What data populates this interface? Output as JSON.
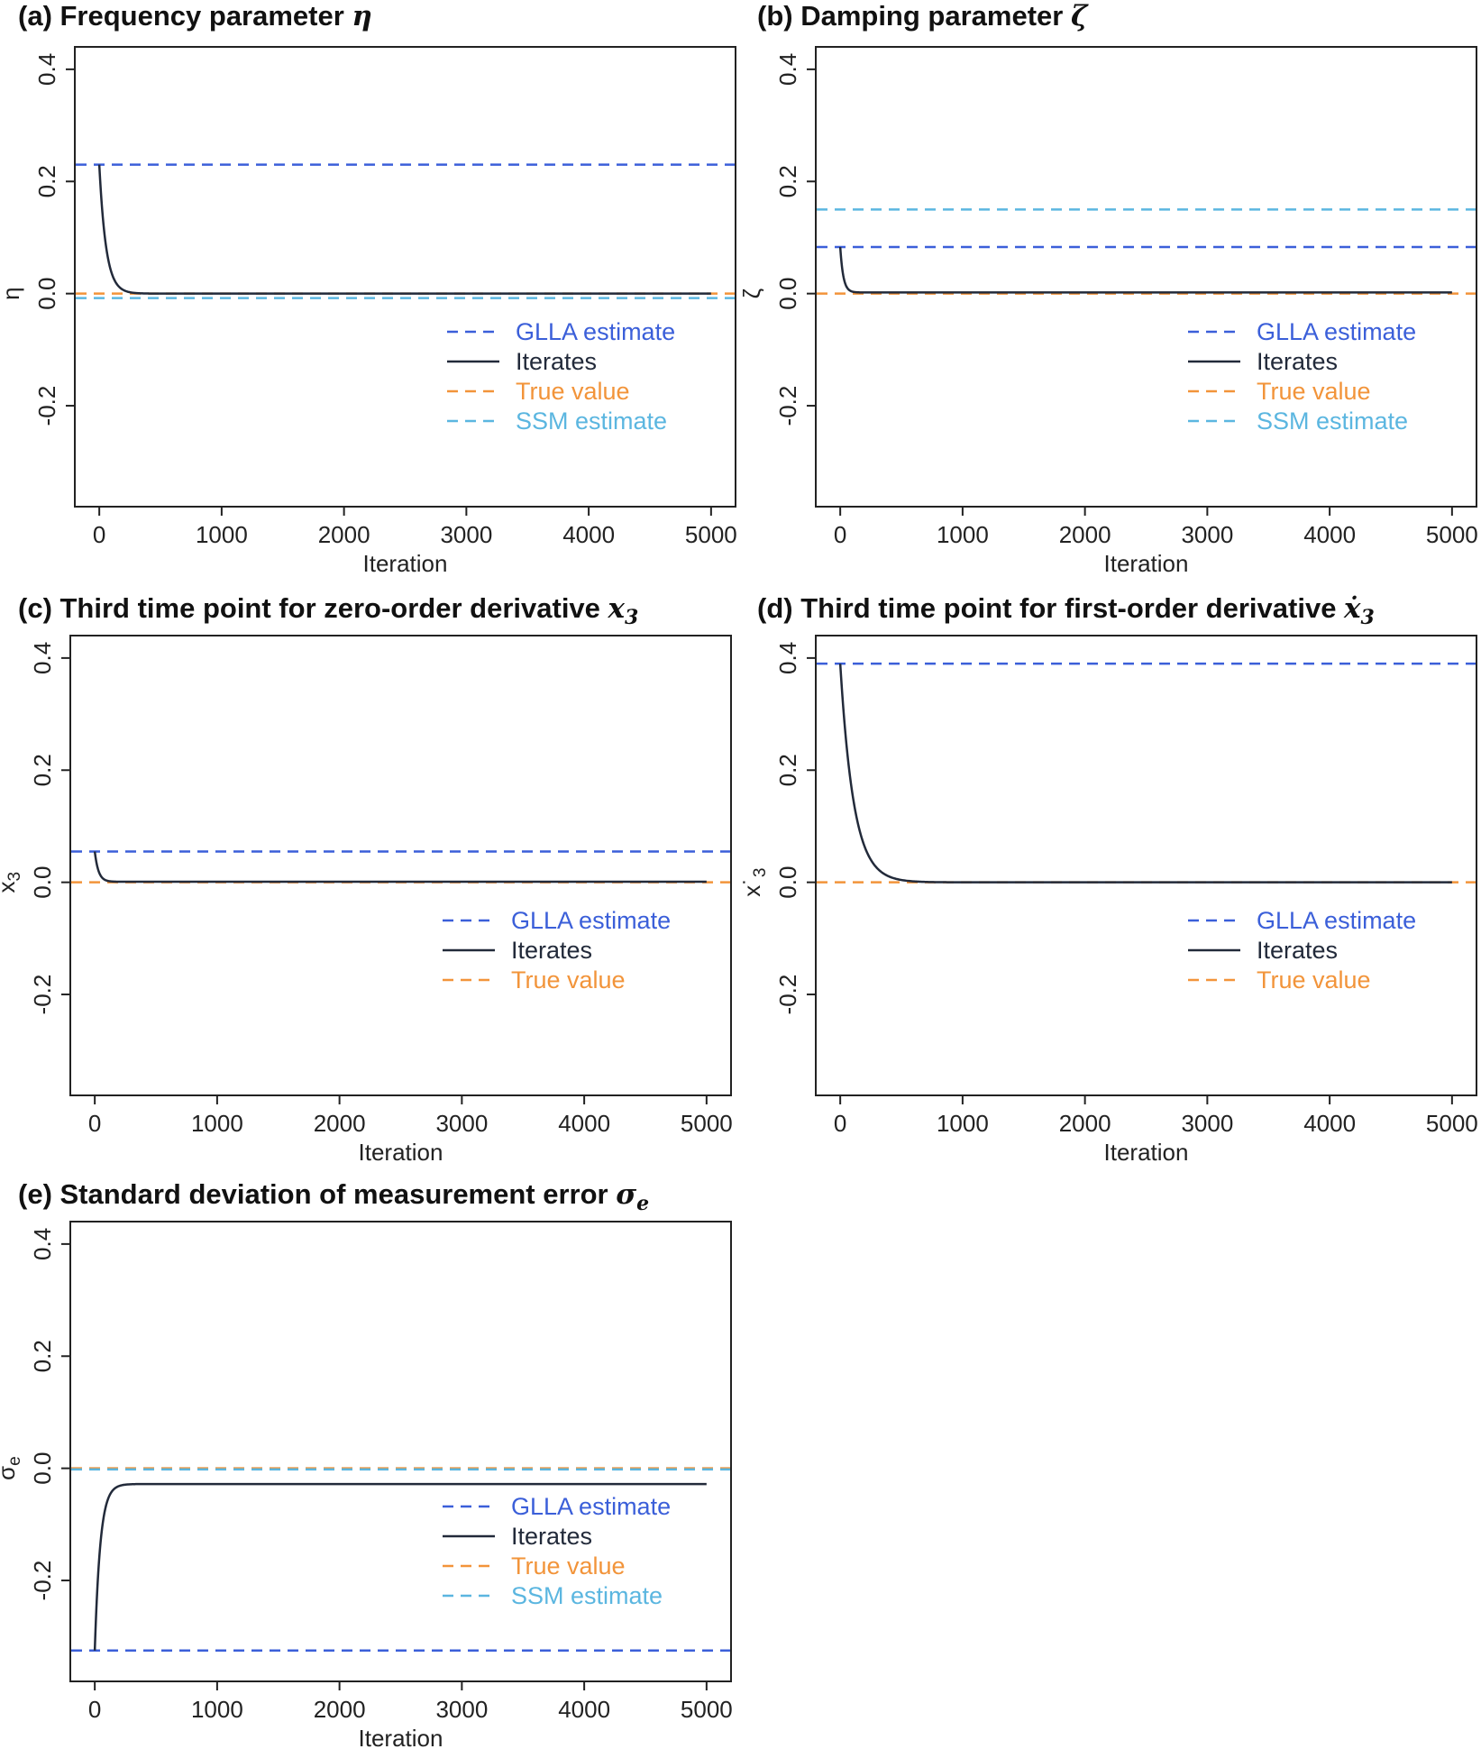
{
  "chart_data": [
    {
      "id": "a",
      "type": "line",
      "title_prefix": "(a) Frequency parameter",
      "title_symbol": "η",
      "title_subscript": "",
      "xlabel": "Iteration",
      "ylabel": "η",
      "ylabel_subscript": "",
      "xlim": [
        -200,
        5200
      ],
      "ylim": [
        -0.38,
        0.44
      ],
      "xticks": [
        0,
        1000,
        2000,
        3000,
        4000,
        5000
      ],
      "yticks": [
        -0.2,
        0.0,
        0.2,
        0.4
      ],
      "ytick_labels": [
        "-0.2",
        "0.0",
        "0.2",
        "0.4"
      ],
      "grid": false,
      "legend_position": "bottom-right",
      "hlines": [
        {
          "name": "GLLA estimate",
          "y": 0.23,
          "color": "#3b5fd9",
          "style": "dashed"
        },
        {
          "name": "True value",
          "y": 0.0,
          "color": "#f2943a",
          "style": "dashed"
        },
        {
          "name": "SSM estimate",
          "y": -0.008,
          "color": "#5bb6e0",
          "style": "dashed"
        }
      ],
      "iterates": {
        "name": "Iterates",
        "start": 0.23,
        "end": 0.0,
        "x_end": 5000,
        "rate": 55,
        "color": "#222a3a"
      },
      "legend": [
        {
          "label": "GLLA estimate",
          "color": "#3b5fd9",
          "style": "dashed"
        },
        {
          "label": "Iterates",
          "color": "#222a3a",
          "style": "solid"
        },
        {
          "label": "True value",
          "color": "#f2943a",
          "style": "dashed"
        },
        {
          "label": "SSM estimate",
          "color": "#5bb6e0",
          "style": "dashed"
        }
      ]
    },
    {
      "id": "b",
      "type": "line",
      "title_prefix": "(b) Damping parameter",
      "title_symbol": "ζ",
      "title_subscript": "",
      "xlabel": "Iteration",
      "ylabel": "ζ",
      "ylabel_subscript": "",
      "xlim": [
        -200,
        5200
      ],
      "ylim": [
        -0.38,
        0.44
      ],
      "xticks": [
        0,
        1000,
        2000,
        3000,
        4000,
        5000
      ],
      "yticks": [
        -0.2,
        0.0,
        0.2,
        0.4
      ],
      "ytick_labels": [
        "-0.2",
        "0.0",
        "0.2",
        "0.4"
      ],
      "grid": false,
      "legend_position": "bottom-right",
      "hlines": [
        {
          "name": "GLLA estimate",
          "y": 0.083,
          "color": "#3b5fd9",
          "style": "dashed"
        },
        {
          "name": "True value",
          "y": 0.0,
          "color": "#f2943a",
          "style": "dashed"
        },
        {
          "name": "SSM estimate",
          "y": 0.15,
          "color": "#5bb6e0",
          "style": "dashed"
        }
      ],
      "iterates": {
        "name": "Iterates",
        "start": 0.083,
        "end": 0.002,
        "x_end": 5000,
        "rate": 25,
        "color": "#222a3a"
      },
      "legend": [
        {
          "label": "GLLA estimate",
          "color": "#3b5fd9",
          "style": "dashed"
        },
        {
          "label": "Iterates",
          "color": "#222a3a",
          "style": "solid"
        },
        {
          "label": "True value",
          "color": "#f2943a",
          "style": "dashed"
        },
        {
          "label": "SSM estimate",
          "color": "#5bb6e0",
          "style": "dashed"
        }
      ]
    },
    {
      "id": "c",
      "type": "line",
      "title_prefix": "(c) Third time point for zero-order derivative",
      "title_symbol": "x",
      "title_subscript": "3",
      "xlabel": "Iteration",
      "ylabel": "x",
      "ylabel_subscript": "3",
      "xlim": [
        -200,
        5200
      ],
      "ylim": [
        -0.38,
        0.44
      ],
      "xticks": [
        0,
        1000,
        2000,
        3000,
        4000,
        5000
      ],
      "yticks": [
        -0.2,
        0.0,
        0.2,
        0.4
      ],
      "ytick_labels": [
        "-0.2",
        "0.0",
        "0.2",
        "0.4"
      ],
      "grid": false,
      "legend_position": "bottom-right",
      "hlines": [
        {
          "name": "GLLA estimate",
          "y": 0.055,
          "color": "#3b5fd9",
          "style": "dashed"
        },
        {
          "name": "True value",
          "y": 0.0,
          "color": "#f2943a",
          "style": "dashed"
        }
      ],
      "iterates": {
        "name": "Iterates",
        "start": 0.055,
        "end": 0.001,
        "x_end": 5000,
        "rate": 30,
        "color": "#222a3a"
      },
      "legend": [
        {
          "label": "GLLA estimate",
          "color": "#3b5fd9",
          "style": "dashed"
        },
        {
          "label": "Iterates",
          "color": "#222a3a",
          "style": "solid"
        },
        {
          "label": "True value",
          "color": "#f2943a",
          "style": "dashed"
        }
      ]
    },
    {
      "id": "d",
      "type": "line",
      "title_prefix": "(d) Third time point for first-order derivative",
      "title_symbol": "ẋ",
      "title_subscript": "3",
      "xlabel": "Iteration",
      "ylabel": "x˙",
      "ylabel_subscript": "3",
      "xlim": [
        -200,
        5200
      ],
      "ylim": [
        -0.38,
        0.44
      ],
      "xticks": [
        0,
        1000,
        2000,
        3000,
        4000,
        5000
      ],
      "yticks": [
        -0.2,
        0.0,
        0.2,
        0.4
      ],
      "ytick_labels": [
        "-0.2",
        "0.0",
        "0.2",
        "0.4"
      ],
      "grid": false,
      "legend_position": "bottom-right",
      "hlines": [
        {
          "name": "GLLA estimate",
          "y": 0.39,
          "color": "#3b5fd9",
          "style": "dashed"
        },
        {
          "name": "True value",
          "y": 0.0,
          "color": "#f2943a",
          "style": "dashed"
        }
      ],
      "iterates": {
        "name": "Iterates",
        "start": 0.39,
        "end": 0.0,
        "x_end": 5000,
        "rate": 110,
        "color": "#222a3a"
      },
      "legend": [
        {
          "label": "GLLA estimate",
          "color": "#3b5fd9",
          "style": "dashed"
        },
        {
          "label": "Iterates",
          "color": "#222a3a",
          "style": "solid"
        },
        {
          "label": "True value",
          "color": "#f2943a",
          "style": "dashed"
        }
      ]
    },
    {
      "id": "e",
      "type": "line",
      "title_prefix": "(e) Standard deviation of measurement error",
      "title_symbol": "σ",
      "title_subscript": "e",
      "xlabel": "Iteration",
      "ylabel": "σ",
      "ylabel_subscript": "e",
      "xlim": [
        -200,
        5200
      ],
      "ylim": [
        -0.38,
        0.44
      ],
      "xticks": [
        0,
        1000,
        2000,
        3000,
        4000,
        5000
      ],
      "yticks": [
        -0.2,
        0.0,
        0.2,
        0.4
      ],
      "ytick_labels": [
        "-0.2",
        "0.0",
        "0.2",
        "0.4"
      ],
      "grid": false,
      "legend_position": "bottom-right",
      "hlines": [
        {
          "name": "GLLA estimate",
          "y": -0.325,
          "color": "#3b5fd9",
          "style": "dashed"
        },
        {
          "name": "True value",
          "y": 0.0,
          "color": "#f2943a",
          "style": "dashed"
        },
        {
          "name": "SSM estimate",
          "y": -0.002,
          "color": "#5bb6e0",
          "style": "dashed"
        }
      ],
      "iterates": {
        "name": "Iterates",
        "start": -0.325,
        "end": -0.028,
        "x_end": 5000,
        "rate": 45,
        "color": "#222a3a"
      },
      "legend": [
        {
          "label": "GLLA estimate",
          "color": "#3b5fd9",
          "style": "dashed"
        },
        {
          "label": "Iterates",
          "color": "#222a3a",
          "style": "solid"
        },
        {
          "label": "True value",
          "color": "#f2943a",
          "style": "dashed"
        },
        {
          "label": "SSM estimate",
          "color": "#5bb6e0",
          "style": "dashed"
        }
      ]
    }
  ]
}
